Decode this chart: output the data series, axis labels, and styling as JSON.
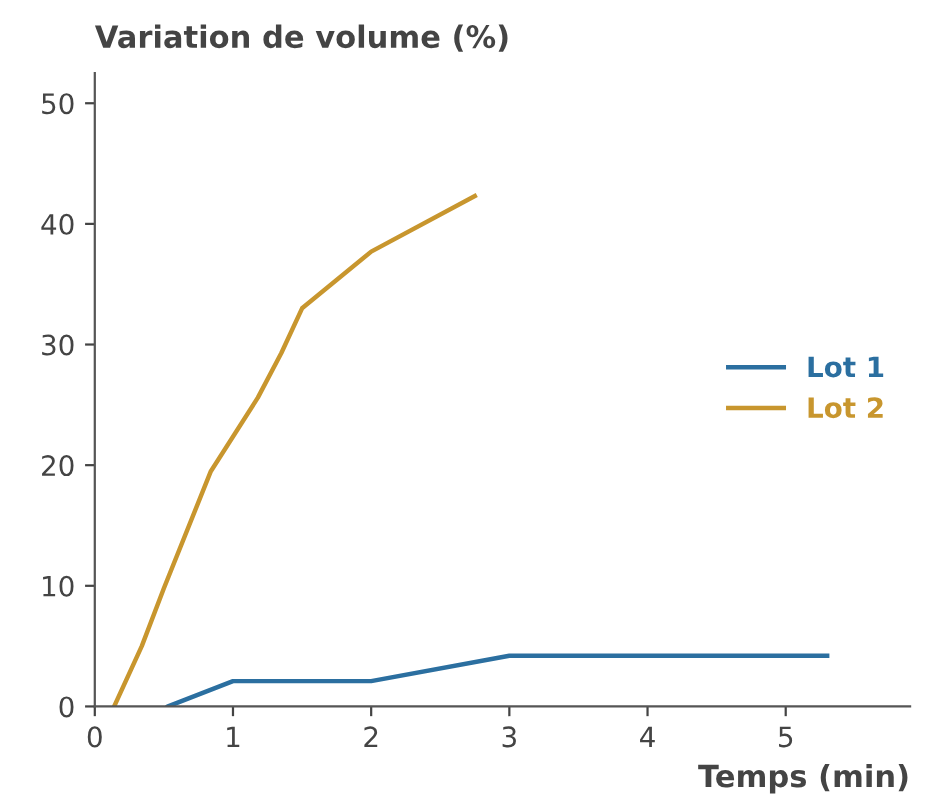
{
  "chart_data": {
    "type": "line",
    "xlabel": "Temps (min)",
    "ylabel": "Variation de volume (%)",
    "series": [
      {
        "name": "Lot 1",
        "color": "#2b6fa0",
        "x": [
          0.53,
          1,
          2,
          3,
          5.3
        ],
        "values": [
          0,
          2.1,
          2.1,
          4.2,
          4.2
        ]
      },
      {
        "name": "Lot 2",
        "color": "#c8962e",
        "x": [
          0.14,
          0.34,
          0.5,
          0.84,
          1.18,
          1.35,
          1.5,
          2,
          2.75
        ],
        "values": [
          0,
          5,
          9.8,
          19.5,
          25.6,
          29.3,
          33,
          37.7,
          42.3
        ]
      }
    ],
    "xlim": [
      0,
      5.9
    ],
    "ylim": [
      0,
      52.5
    ],
    "xticks": [
      0,
      1,
      2,
      3,
      4,
      5
    ],
    "yticks": [
      0,
      10,
      20,
      30,
      40,
      50
    ],
    "legend": "center right",
    "grid": false,
    "marker": "none",
    "line_style": "solid"
  }
}
